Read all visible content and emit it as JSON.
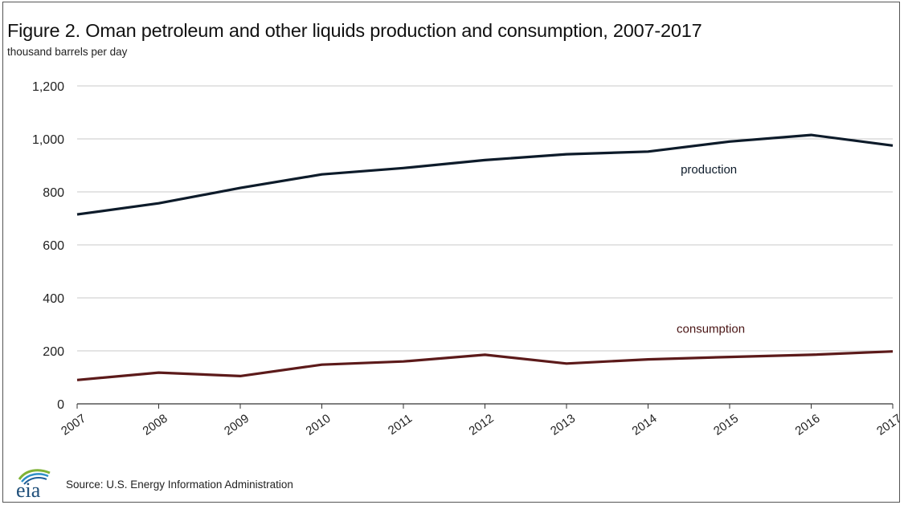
{
  "header": {
    "title": "Figure 2. Oman petroleum and other liquids production and consumption, 2007-2017",
    "subtitle": "thousand barrels per day"
  },
  "footer": {
    "logo_text": "eia",
    "source": "Source: U.S. Energy Information Administration"
  },
  "chart_data": {
    "type": "line",
    "title": "Figure 2. Oman petroleum and other liquids production and consumption, 2007-2017",
    "ylabel": "thousand barrels per day",
    "xlabel": "",
    "x": [
      "2007",
      "2008",
      "2009",
      "2010",
      "2011",
      "2012",
      "2013",
      "2014",
      "2015",
      "2016",
      "2017"
    ],
    "ylim": [
      0,
      1200
    ],
    "yticks": [
      "0",
      "200",
      "400",
      "600",
      "800",
      "1,000",
      "1,200"
    ],
    "ytick_values": [
      0,
      200,
      400,
      600,
      800,
      1000,
      1200
    ],
    "grid": true,
    "legend": "inline labels",
    "series": [
      {
        "name": "production",
        "color": "#0d1b2a",
        "values": [
          715,
          757,
          815,
          866,
          890,
          920,
          942,
          952,
          990,
          1015,
          975
        ]
      },
      {
        "name": "consumption",
        "color": "#5c1a1a",
        "values": [
          90,
          118,
          105,
          148,
          160,
          185,
          152,
          168,
          177,
          185,
          198
        ]
      }
    ]
  }
}
